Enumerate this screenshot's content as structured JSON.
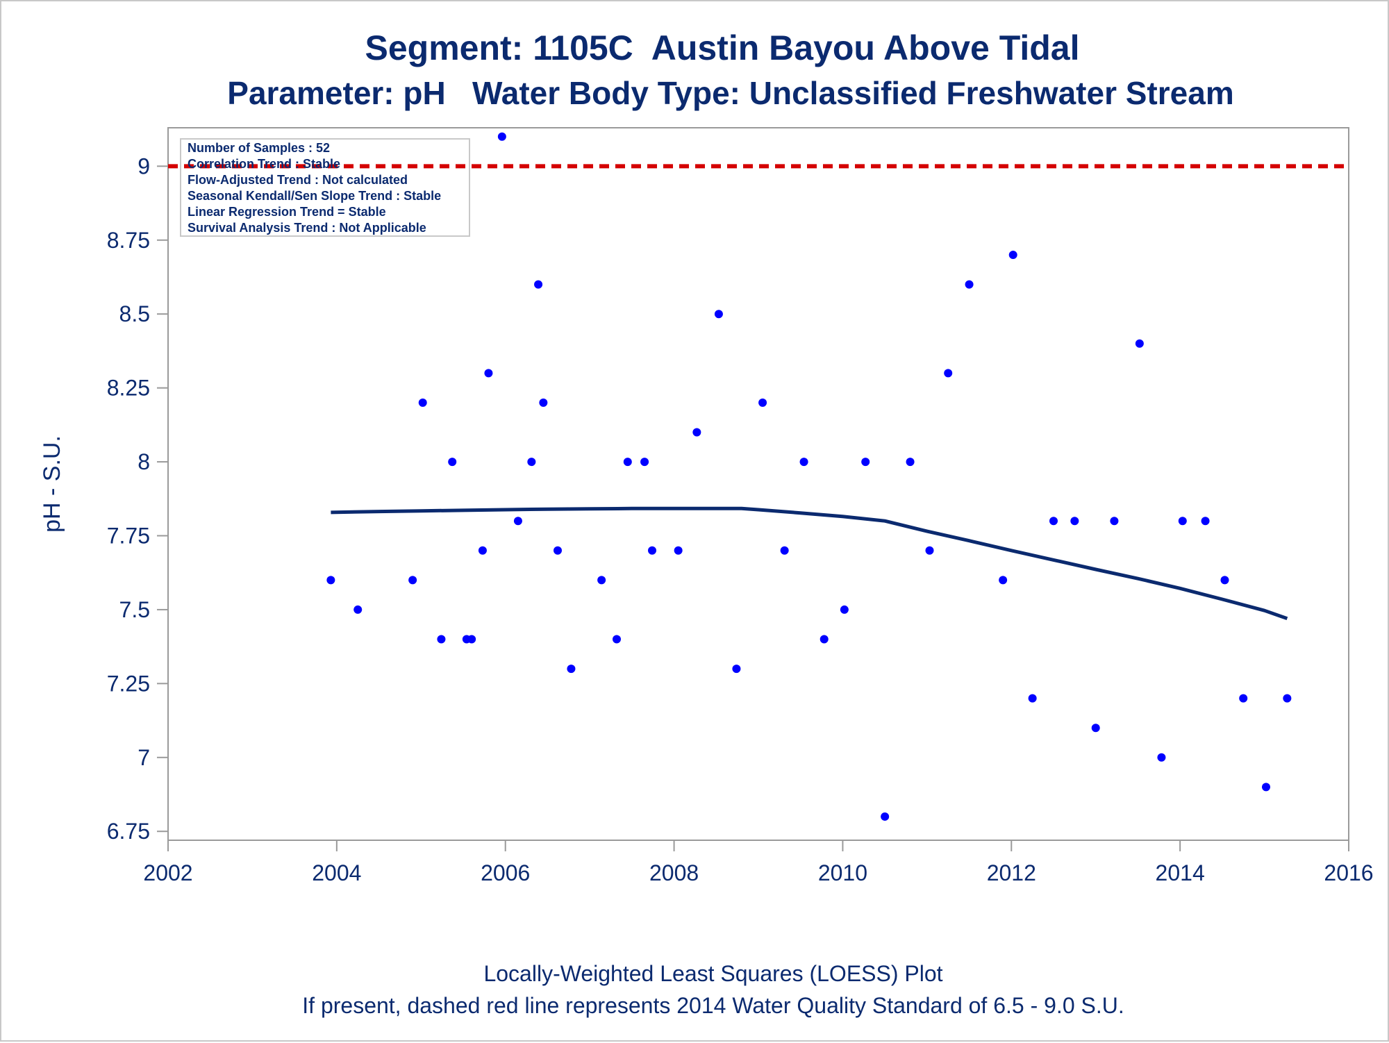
{
  "title_line1": "Segment: 1105C  Austin Bayou Above Tidal",
  "title_line2": "Parameter: pH   Water Body Type: Unclassified Freshwater Stream",
  "footnote_line1": "Locally-Weighted Least Squares (LOESS) Plot",
  "footnote_line2": "If present, dashed red line represents 2014 Water Quality Standard of 6.5 - 9.0 S.U.",
  "annotation_lines": [
    "Number of Samples : 52",
    "Correlation Trend : Stable",
    "Flow-Adjusted Trend : Not calculated",
    "Seasonal Kendall/Sen Slope Trend : Stable",
    "Linear Regression Trend = Stable",
    "Survival Analysis Trend : Not Applicable"
  ],
  "colors": {
    "text": "#0b2a6f",
    "points": "#0000ff",
    "loess": "#0b2a6f",
    "standard_line": "#d40000",
    "axis": "#9a9a9a"
  },
  "chart_data": {
    "type": "scatter",
    "xlabel": "",
    "ylabel": "pH - S.U.",
    "xlim": [
      2002,
      2016
    ],
    "ylim": [
      6.72,
      9.13
    ],
    "xticks": [
      2002,
      2004,
      2006,
      2008,
      2010,
      2012,
      2014,
      2016
    ],
    "yticks": [
      6.75,
      7,
      7.25,
      7.5,
      7.75,
      8,
      8.25,
      8.5,
      8.75,
      9
    ],
    "ytick_labels": [
      "6.75",
      "7",
      "7.25",
      "7.5",
      "7.75",
      "8",
      "8.25",
      "8.5",
      "8.75",
      "9"
    ],
    "grid": false,
    "reference_line": {
      "y": 9.0,
      "style": "dashed"
    },
    "points": [
      {
        "x": 2003.93,
        "y": 7.6
      },
      {
        "x": 2004.25,
        "y": 7.5
      },
      {
        "x": 2004.9,
        "y": 7.6
      },
      {
        "x": 2005.02,
        "y": 8.2
      },
      {
        "x": 2005.24,
        "y": 7.4
      },
      {
        "x": 2005.37,
        "y": 8.0
      },
      {
        "x": 2005.54,
        "y": 7.4
      },
      {
        "x": 2005.6,
        "y": 7.4
      },
      {
        "x": 2005.73,
        "y": 7.7
      },
      {
        "x": 2005.8,
        "y": 8.3
      },
      {
        "x": 2005.96,
        "y": 9.1
      },
      {
        "x": 2006.15,
        "y": 7.8
      },
      {
        "x": 2006.31,
        "y": 8.0
      },
      {
        "x": 2006.39,
        "y": 8.6
      },
      {
        "x": 2006.45,
        "y": 8.2
      },
      {
        "x": 2006.62,
        "y": 7.7
      },
      {
        "x": 2006.78,
        "y": 7.3
      },
      {
        "x": 2007.14,
        "y": 7.6
      },
      {
        "x": 2007.32,
        "y": 7.4
      },
      {
        "x": 2007.45,
        "y": 8.0
      },
      {
        "x": 2007.65,
        "y": 8.0
      },
      {
        "x": 2007.74,
        "y": 7.7
      },
      {
        "x": 2008.05,
        "y": 7.7
      },
      {
        "x": 2008.27,
        "y": 8.1
      },
      {
        "x": 2008.53,
        "y": 8.5
      },
      {
        "x": 2008.74,
        "y": 7.3
      },
      {
        "x": 2009.05,
        "y": 8.2
      },
      {
        "x": 2009.31,
        "y": 7.7
      },
      {
        "x": 2009.54,
        "y": 8.0
      },
      {
        "x": 2009.78,
        "y": 7.4
      },
      {
        "x": 2010.02,
        "y": 7.5
      },
      {
        "x": 2010.27,
        "y": 8.0
      },
      {
        "x": 2010.5,
        "y": 6.8
      },
      {
        "x": 2010.8,
        "y": 8.0
      },
      {
        "x": 2011.03,
        "y": 7.7
      },
      {
        "x": 2011.25,
        "y": 8.3
      },
      {
        "x": 2011.5,
        "y": 8.6
      },
      {
        "x": 2011.9,
        "y": 7.6
      },
      {
        "x": 2012.02,
        "y": 8.7
      },
      {
        "x": 2012.25,
        "y": 7.2
      },
      {
        "x": 2012.5,
        "y": 7.8
      },
      {
        "x": 2012.75,
        "y": 7.8
      },
      {
        "x": 2013.0,
        "y": 7.1
      },
      {
        "x": 2013.22,
        "y": 7.8
      },
      {
        "x": 2013.52,
        "y": 8.4
      },
      {
        "x": 2013.78,
        "y": 7.0
      },
      {
        "x": 2014.03,
        "y": 7.8
      },
      {
        "x": 2014.3,
        "y": 7.8
      },
      {
        "x": 2014.53,
        "y": 7.6
      },
      {
        "x": 2014.75,
        "y": 7.2
      },
      {
        "x": 2015.02,
        "y": 6.9
      },
      {
        "x": 2015.27,
        "y": 7.2
      }
    ],
    "loess": {
      "x": [
        2003.93,
        2004.5,
        2005.0,
        2005.5,
        2006.0,
        2006.5,
        2007.0,
        2007.5,
        2008.0,
        2008.5,
        2008.8,
        2009.0,
        2009.5,
        2010.0,
        2010.5,
        2011.0,
        2011.5,
        2012.0,
        2012.5,
        2013.0,
        2013.5,
        2014.0,
        2014.5,
        2015.0,
        2015.27
      ],
      "y": [
        7.829,
        7.832,
        7.834,
        7.836,
        7.838,
        7.84,
        7.841,
        7.842,
        7.842,
        7.842,
        7.842,
        7.838,
        7.827,
        7.815,
        7.8,
        7.765,
        7.733,
        7.7,
        7.668,
        7.636,
        7.605,
        7.572,
        7.535,
        7.497,
        7.47
      ]
    }
  }
}
